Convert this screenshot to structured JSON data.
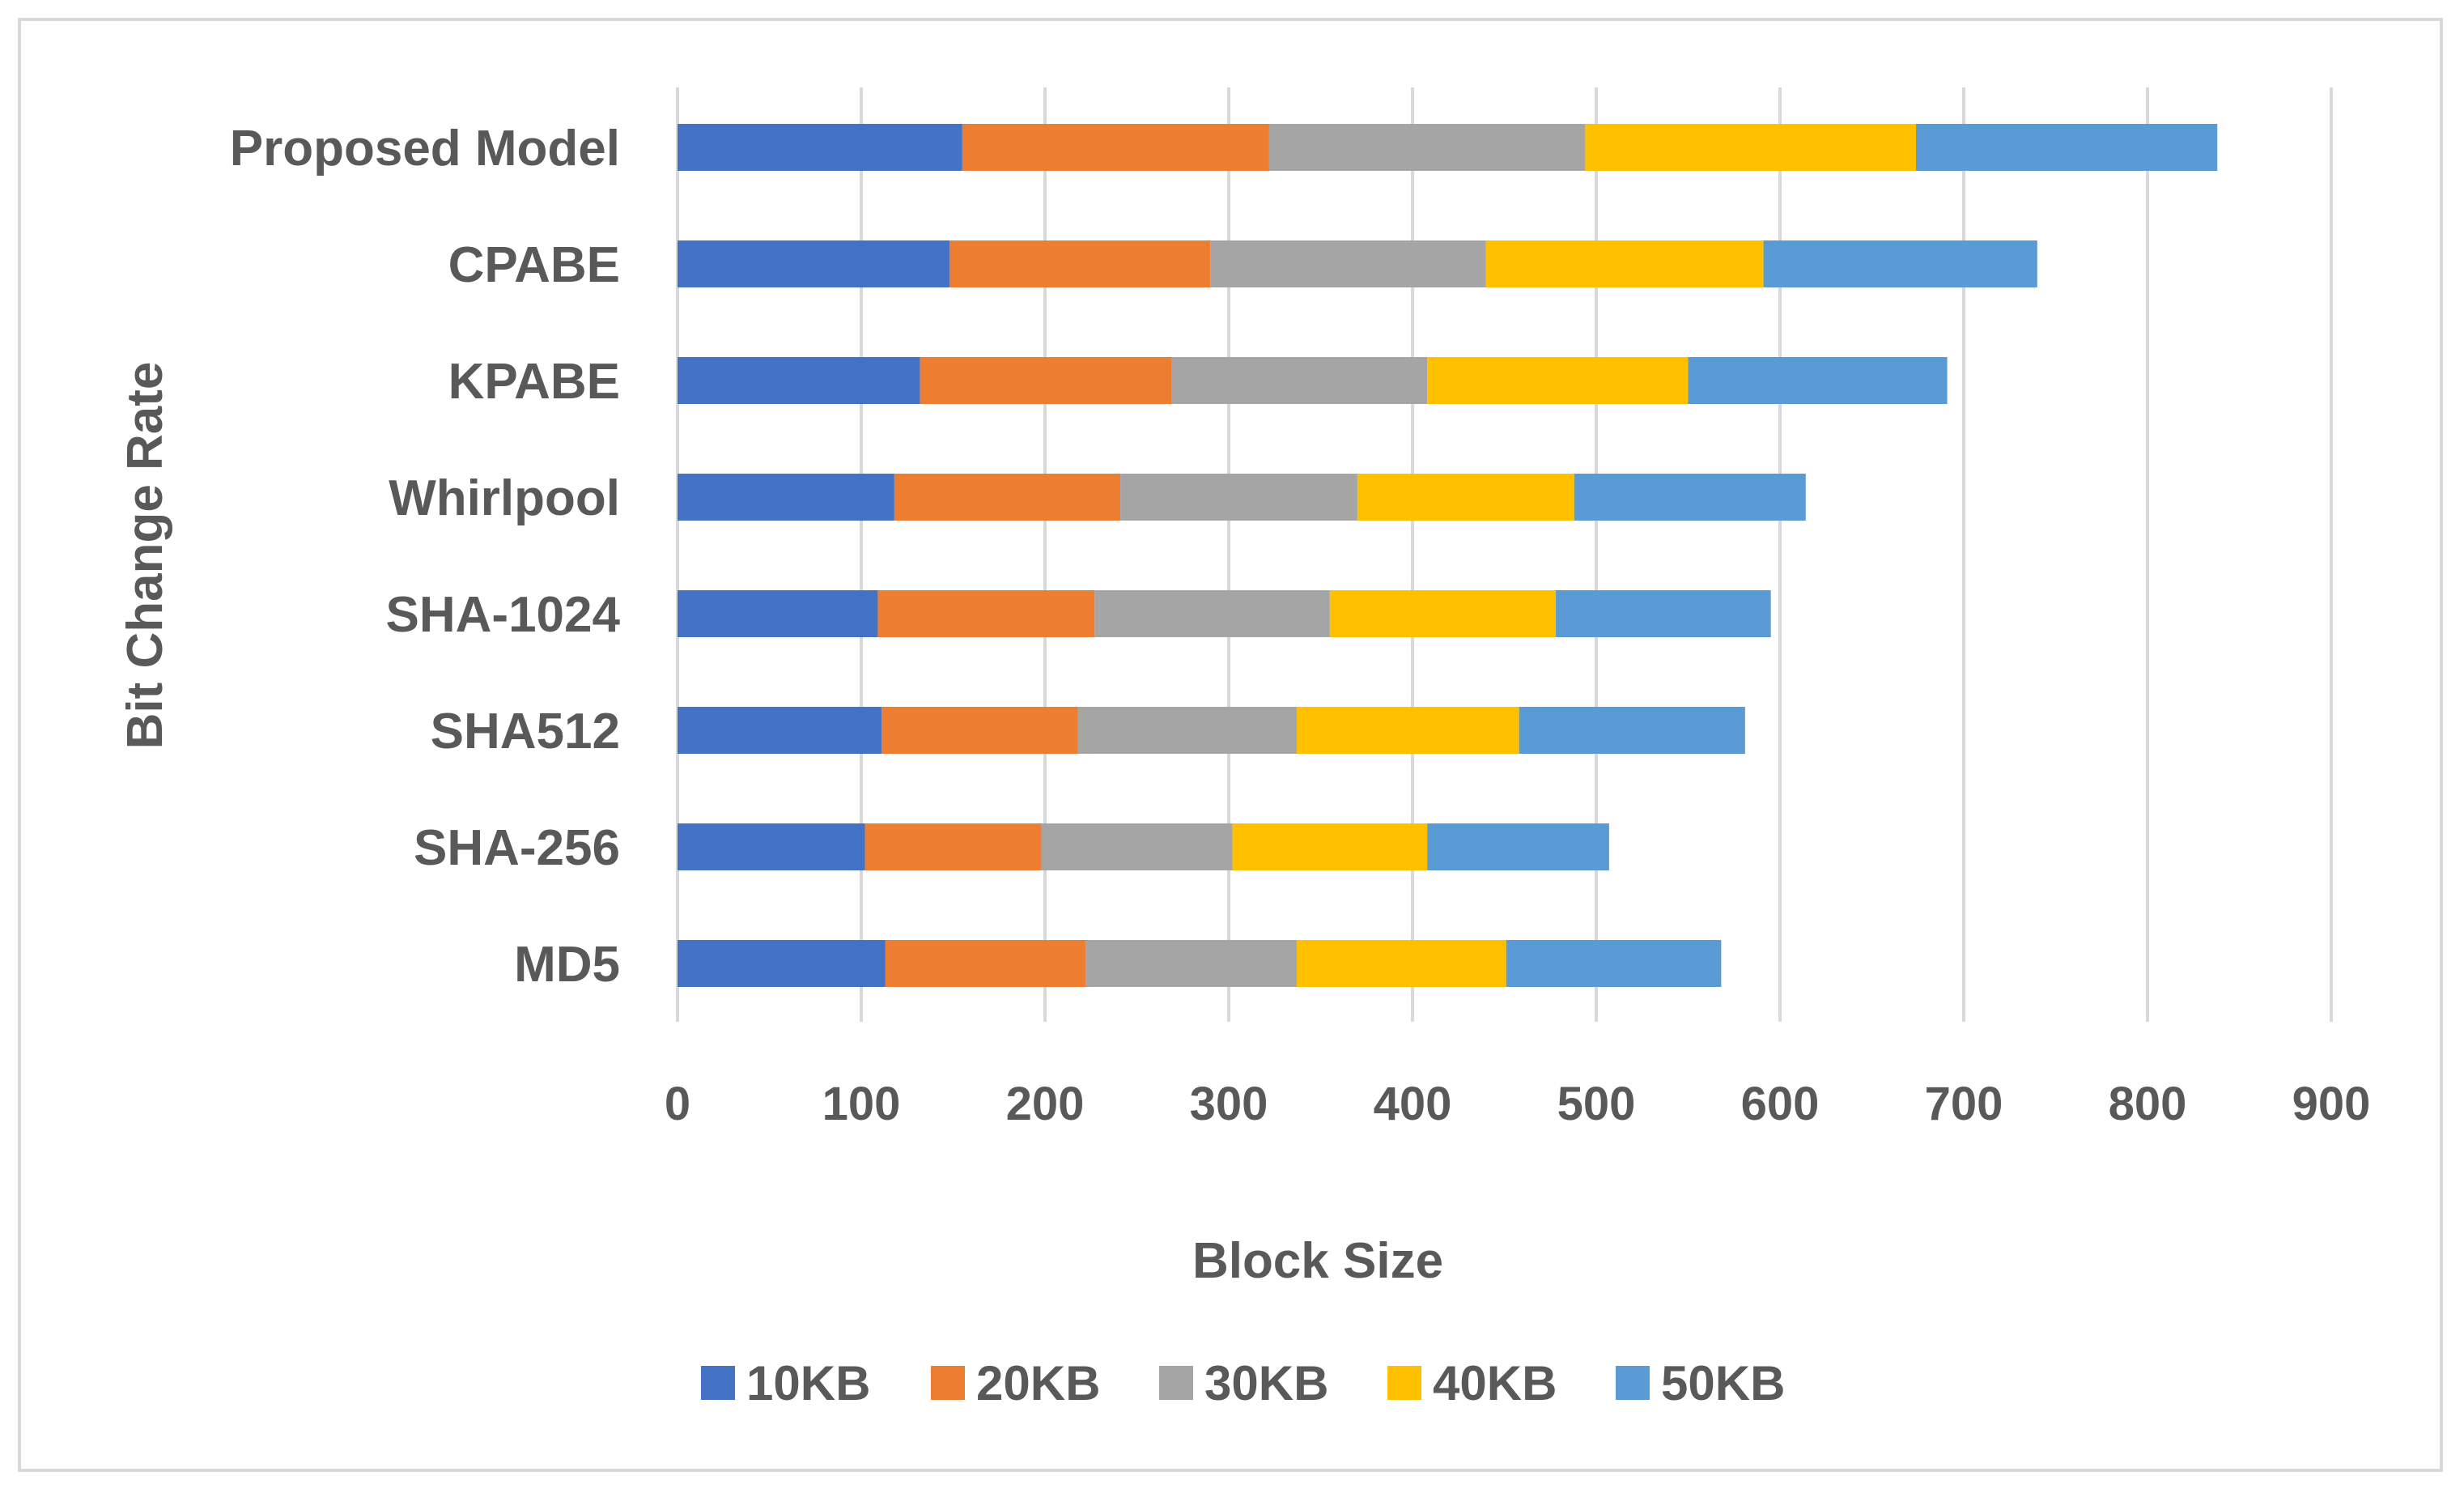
{
  "chart_data": {
    "type": "bar",
    "orientation": "horizontal",
    "stacked": true,
    "title": "",
    "xlabel": "Block Size",
    "ylabel": "Bit Change Rate",
    "xlim": [
      0,
      900
    ],
    "xticks": [
      0,
      100,
      200,
      300,
      400,
      500,
      600,
      700,
      800,
      900
    ],
    "grid": true,
    "legend_position": "bottom",
    "categories": [
      "MD5",
      "SHA-256",
      "SHA512",
      "SHA-1024",
      "Whirlpool",
      "KPABE",
      "CPABE",
      "Proposed Model"
    ],
    "series": [
      {
        "name": "10KB",
        "color": "#4472c4",
        "values": [
          113,
          102,
          111,
          109,
          118,
          132,
          148,
          155
        ]
      },
      {
        "name": "20KB",
        "color": "#ed7d31",
        "values": [
          109,
          96,
          107,
          118,
          123,
          137,
          142,
          167
        ]
      },
      {
        "name": "30KB",
        "color": "#a5a5a5",
        "values": [
          115,
          104,
          119,
          128,
          129,
          139,
          150,
          172
        ]
      },
      {
        "name": "40KB",
        "color": "#ffc000",
        "values": [
          114,
          106,
          121,
          123,
          118,
          142,
          151,
          180
        ]
      },
      {
        "name": "50KB",
        "color": "#5b9bd5",
        "values": [
          117,
          99,
          123,
          117,
          126,
          141,
          149,
          164
        ]
      }
    ]
  }
}
